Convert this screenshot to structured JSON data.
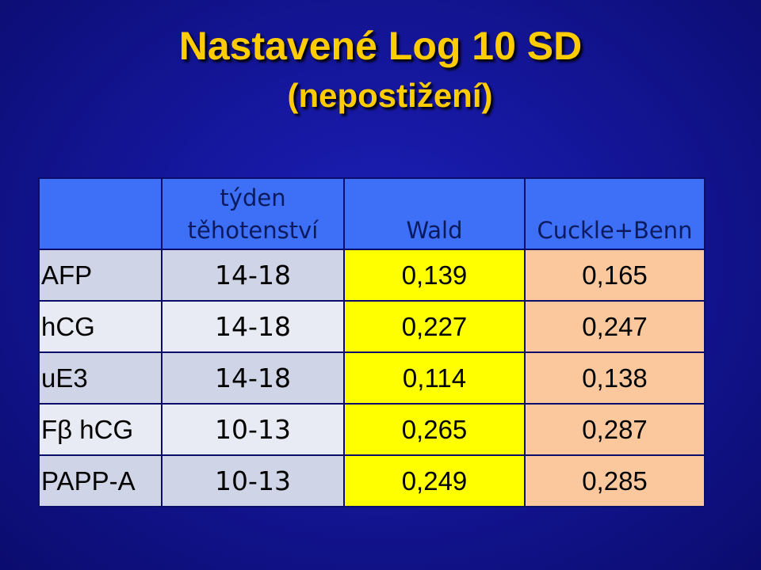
{
  "title": {
    "line1": "Nastavené Log 10 SD",
    "line2": "(nepostižení)"
  },
  "table": {
    "headers": {
      "marker": "",
      "week_line1": "týden",
      "week_line2": "těhotenství",
      "wald": "Wald",
      "cuckle_benn": "Cuckle+Benn"
    },
    "rows": [
      {
        "marker": "AFP",
        "week": "14-18",
        "wald": "0,139",
        "cuckle_benn": "0,165"
      },
      {
        "marker": "hCG",
        "week": "14-18",
        "wald": "0,227",
        "cuckle_benn": "0,247"
      },
      {
        "marker": "uE3",
        "week": "14-18",
        "wald": "0,114",
        "cuckle_benn": "0,138"
      },
      {
        "marker": "Fβ hCG",
        "week": "10-13",
        "wald": "0,265",
        "cuckle_benn": "0,287"
      },
      {
        "marker": "PAPP-A",
        "week": "10-13",
        "wald": "0,249",
        "cuckle_benn": "0,285"
      }
    ]
  },
  "colors": {
    "background": "#14169a",
    "title": "#ffcc00",
    "header": "#3d6ff7",
    "wald_column": "#ffff00",
    "cuckle_benn_column": "#fbc89d"
  }
}
